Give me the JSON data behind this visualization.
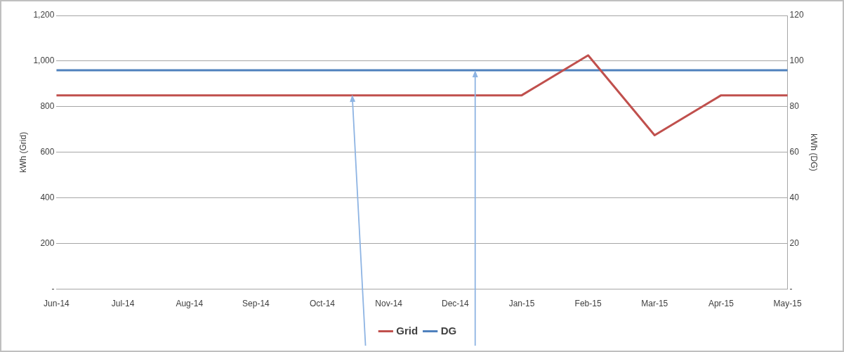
{
  "chart_data": {
    "type": "line",
    "categories": [
      "Jun-14",
      "Jul-14",
      "Aug-14",
      "Sep-14",
      "Oct-14",
      "Nov-14",
      "Dec-14",
      "Jan-15",
      "Feb-15",
      "Mar-15",
      "Apr-15",
      "May-15"
    ],
    "ylabel": "kWh (Grid)",
    "y2label": "kWh (DG)",
    "series": [
      {
        "name": "Grid",
        "color": "#c0504d",
        "values": [
          850,
          850,
          850,
          850,
          850,
          850,
          850,
          850,
          1025,
          675,
          850,
          850
        ]
      },
      {
        "name": "DG",
        "color": "#4f81bd",
        "axis": "y2",
        "values": [
          96,
          96,
          96,
          96,
          96,
          96,
          96,
          96,
          96,
          96,
          96,
          96
        ]
      }
    ],
    "ylim": [
      0,
      1200
    ],
    "yticks": [
      {
        "value": 0,
        "label": "-"
      },
      200,
      400,
      600,
      800,
      {
        "value": 1000,
        "label": "1,000"
      },
      {
        "value": 1200,
        "label": "1,200"
      }
    ],
    "y2lim": [
      0,
      120
    ],
    "y2ticks": [
      {
        "value": 0,
        "label": "-"
      },
      20,
      40,
      60,
      80,
      100,
      120
    ],
    "grid": "y",
    "legend": "bottom",
    "marker": "none",
    "line_style": "solid"
  }
}
